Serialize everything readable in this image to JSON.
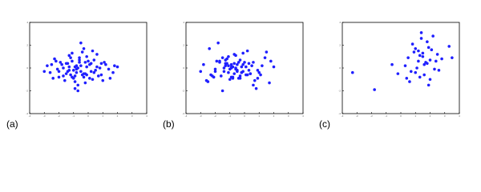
{
  "chart_data": [
    {
      "type": "scatter",
      "title": "(a)",
      "color": "#1f1fff",
      "xlim": [
        -4,
        4
      ],
      "ylim": [
        -4,
        4
      ],
      "xticks": [
        -4,
        -3,
        -2,
        -1,
        0,
        1,
        2,
        3,
        4
      ],
      "yticks": [
        -4,
        -2,
        0,
        2,
        4
      ],
      "x": [
        -0.8,
        -1.5,
        0.2,
        -2.1,
        -0.3,
        0.6,
        -1.1,
        -0.5,
        -1.8,
        0.9,
        -0.1,
        -2.6,
        -0.9,
        0.4,
        -1.3,
        -0.6,
        1.4,
        -2.3,
        -0.2,
        -1.0,
        0.1,
        -1.7,
        -0.4,
        0.8,
        -1.2,
        -0.7,
        1.1,
        -2.0,
        -0.9,
        0.3,
        -1.4,
        -0.1,
        -0.6,
        1.7,
        -2.8,
        -0.3,
        0.5,
        -1.6,
        -0.8,
        0.0,
        -1.9,
        -1.1,
        0.7,
        -0.5,
        -2.4,
        1.2,
        -0.2,
        -1.3,
        0.2,
        -0.7,
        -1.0,
        2.0,
        -3.0,
        -0.4,
        0.6,
        -1.5,
        -0.9,
        1.5,
        -2.2,
        -0.1,
        -0.8,
        0.4,
        -1.2,
        -0.6,
        -1.7,
        0.9,
        -0.3,
        -2.5,
        1.0,
        -1.1,
        0.1,
        -0.5,
        -1.4,
        1.8,
        -0.2,
        -0.9,
        -2.0,
        0.3,
        -0.7,
        -1.3
      ],
      "values": [
        0.2,
        -0.5,
        0.4,
        -0.1,
        -0.8,
        0.1,
        0.6,
        -0.3,
        0.3,
        -0.6,
        1.0,
        -0.4,
        -1.2,
        0.7,
        -0.2,
        0.5,
        -0.1,
        0.8,
        -0.5,
        -0.9,
        0.3,
        -0.7,
        1.4,
        0.0,
        0.9,
        -1.5,
        0.5,
        -0.3,
        0.1,
        -1.0,
        0.4,
        -0.6,
        0.7,
        -0.4,
        0.2,
        1.7,
        -0.2,
        -1.1,
        -0.4,
        0.6,
        0.5,
        -0.8,
        -0.7,
        0.2,
        -0.9,
        0.3,
        -1.3,
        1.1,
        -0.3,
        0.0,
        -0.2,
        0.1,
        -0.3,
        -0.6,
        1.2,
        0.4,
        -1.8,
        -0.9,
        0.6,
        0.1,
        -0.1,
        -0.4,
        -0.6,
        0.9,
        0.0,
        0.4,
        -0.5,
        0.3,
        -1.1,
        1.3,
        -0.9,
        2.2,
        -0.3,
        0.2,
        0.5,
        -0.7,
        -0.8,
        1.5,
        -2.0,
        0.1
      ]
    },
    {
      "type": "scatter",
      "title": "(b)",
      "color": "#1f1fff",
      "xlim": [
        -4,
        4
      ],
      "ylim": [
        -4,
        4
      ],
      "xticks": [
        -4,
        -3,
        -2,
        -1,
        0,
        1,
        2,
        3,
        4
      ],
      "yticks": [
        -4,
        -2,
        0,
        2,
        4
      ],
      "x": [
        -1.3,
        -0.7,
        0.3,
        -2.0,
        -0.9,
        -0.2,
        1.8,
        -1.4,
        -0.5,
        0.1,
        -1.1,
        1.0,
        -2.5,
        -0.3,
        0.9,
        -1.7,
        -0.6,
        -1.2,
        0.4,
        -0.8,
        -0.1,
        -2.2,
        1.5,
        -0.9,
        -1.5,
        0.6,
        -0.4,
        -3.0,
        2.0,
        -1.0,
        -0.7,
        0.2,
        -1.3,
        -0.2,
        1.2,
        -2.4,
        -0.5,
        0.7,
        -1.1,
        -1.9,
        0.0,
        -0.8,
        -1.6,
        0.5,
        -0.3,
        -2.8,
        1.7,
        -0.6,
        -0.1,
        -1.4,
        0.3,
        -0.9,
        -2.0,
        1.1,
        -0.7,
        -1.2,
        0.8,
        -0.4,
        -1.7,
        0.1,
        -1.0,
        -0.2,
        -2.3,
        1.4,
        -0.6,
        -1.3,
        0.4,
        -0.9,
        -2.6,
        -0.1,
        0.9,
        -1.8,
        -0.5,
        -1.1,
        0.6,
        -0.3,
        -2.1,
        0.2,
        -1.5,
        -0.8
      ],
      "values": [
        0.2,
        -0.5,
        0.4,
        -0.1,
        -0.8,
        0.1,
        0.6,
        -0.3,
        0.3,
        -0.6,
        1.0,
        -0.4,
        -1.2,
        0.7,
        -0.2,
        0.5,
        -0.1,
        0.8,
        -0.5,
        -0.9,
        0.3,
        -0.7,
        1.4,
        0.0,
        0.9,
        -1.5,
        0.5,
        -0.3,
        0.1,
        -1.0,
        0.4,
        -0.6,
        0.7,
        -0.4,
        0.2,
        1.7,
        -0.2,
        -1.1,
        -0.4,
        0.6,
        0.5,
        -0.8,
        -0.7,
        0.2,
        -0.9,
        0.3,
        -1.3,
        1.1,
        -0.3,
        0.0,
        -0.2,
        0.1,
        -0.3,
        -0.6,
        1.2,
        0.4,
        -1.8,
        -0.9,
        0.6,
        0.1,
        -0.1,
        -0.4,
        -0.6,
        0.9,
        0.0,
        0.4,
        -0.5,
        0.3,
        -1.1,
        1.3,
        -0.9,
        2.2,
        -0.3,
        0.2,
        0.5,
        -0.7,
        -0.8,
        1.5,
        -2.0,
        0.1
      ]
    },
    {
      "type": "scatter",
      "title": "(c)",
      "color": "#1f1fff",
      "xlim": [
        -4,
        4
      ],
      "ylim": [
        -4,
        4
      ],
      "xticks": [
        -4,
        -3,
        -2,
        -1,
        0,
        1,
        2,
        3,
        4
      ],
      "yticks": [
        -4,
        -2,
        0,
        2,
        4
      ],
      "x": [
        1.2,
        2.0,
        0.8,
        1.6,
        2.5,
        1.0,
        1.9,
        0.5,
        1.4,
        2.3,
        1.7,
        0.9,
        2.8,
        1.3,
        0.3,
        1.8,
        2.1,
        1.1,
        1.5,
        3.3,
        0.7,
        1.9,
        2.4,
        1.0,
        1.6,
        -0.2,
        2.2,
        1.3,
        0.6,
        1.8,
        -3.3,
        -1.8,
        3.5,
        1.4,
        2.6,
        0.4,
        1.2,
        -0.6,
        2.0,
        1.5
      ],
      "values": [
        1.5,
        0.7,
        2.1,
        0.3,
        1.2,
        -0.4,
        1.8,
        0.9,
        2.6,
        -0.1,
        0.5,
        1.4,
        0.8,
        -0.8,
        0.2,
        2.3,
        1.6,
        0.0,
        1.0,
        1.9,
        -0.3,
        -1.5,
        0.6,
        1.7,
        -0.6,
        -0.5,
        2.8,
        1.1,
        -1.2,
        0.4,
        -0.4,
        -1.9,
        0.9,
        3.1,
        -0.2,
        -0.9,
        0.6,
        0.3,
        -1.0,
        1.3
      ]
    }
  ]
}
